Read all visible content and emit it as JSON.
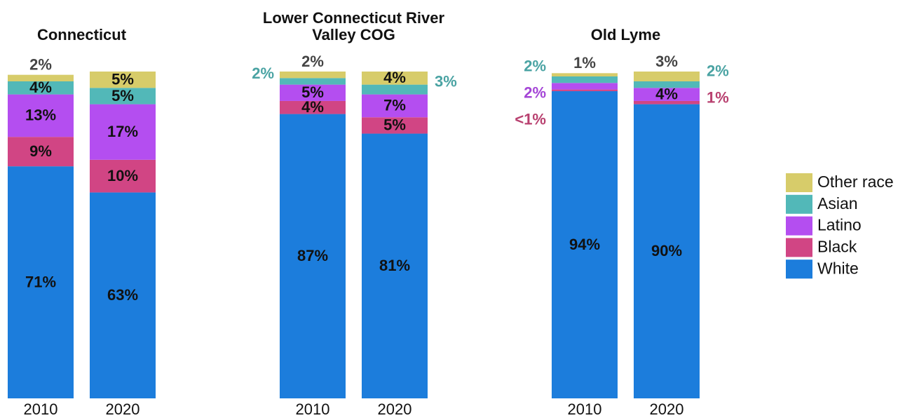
{
  "chart_data": [
    {
      "type": "stacked-bar",
      "title": "Connecticut",
      "categories": [
        "2010",
        "2020"
      ],
      "ylim": [
        0,
        100
      ],
      "legend": "right",
      "series": [
        {
          "name": "White",
          "color": "#1c7ddc",
          "values": [
            71,
            63
          ],
          "value_labels": [
            "71%",
            "63%"
          ]
        },
        {
          "name": "Black",
          "color": "#d14584",
          "values": [
            9,
            10
          ],
          "value_labels": [
            "9%",
            "10%"
          ]
        },
        {
          "name": "Latino",
          "color": "#b44ef0",
          "values": [
            13,
            17
          ],
          "value_labels": [
            "13%",
            "17%"
          ]
        },
        {
          "name": "Asian",
          "color": "#52b8b8",
          "values": [
            4,
            5
          ],
          "value_labels": [
            "4%",
            "5%"
          ]
        },
        {
          "name": "Other race",
          "color": "#d7cc6a",
          "values": [
            2,
            5
          ],
          "value_labels": [
            "2%",
            "5%"
          ]
        }
      ]
    },
    {
      "type": "stacked-bar",
      "title": "Lower Connecticut River Valley COG",
      "categories": [
        "2010",
        "2020"
      ],
      "ylim": [
        0,
        100
      ],
      "series": [
        {
          "name": "White",
          "color": "#1c7ddc",
          "values": [
            87,
            81
          ],
          "value_labels": [
            "87%",
            "81%"
          ]
        },
        {
          "name": "Black",
          "color": "#d14584",
          "values": [
            4,
            5
          ],
          "value_labels": [
            "4%",
            "5%"
          ]
        },
        {
          "name": "Latino",
          "color": "#b44ef0",
          "values": [
            5,
            7
          ],
          "value_labels": [
            "5%",
            "7%"
          ]
        },
        {
          "name": "Asian",
          "color": "#52b8b8",
          "values": [
            2,
            3
          ],
          "value_labels": [
            "2%",
            "3%"
          ]
        },
        {
          "name": "Other race",
          "color": "#d7cc6a",
          "values": [
            2,
            4
          ],
          "value_labels": [
            "2%",
            "4%"
          ]
        }
      ]
    },
    {
      "type": "stacked-bar",
      "title": "Old Lyme",
      "categories": [
        "2010",
        "2020"
      ],
      "ylim": [
        0,
        100
      ],
      "series": [
        {
          "name": "White",
          "color": "#1c7ddc",
          "values": [
            94,
            90
          ],
          "value_labels": [
            "94%",
            "90%"
          ]
        },
        {
          "name": "Black",
          "color": "#d14584",
          "values": [
            0.5,
            1
          ],
          "value_labels": [
            "<1%",
            "1%"
          ]
        },
        {
          "name": "Latino",
          "color": "#b44ef0",
          "values": [
            2,
            4
          ],
          "value_labels": [
            "2%",
            "4%"
          ]
        },
        {
          "name": "Asian",
          "color": "#52b8b8",
          "values": [
            2,
            2
          ],
          "value_labels": [
            "2%",
            "2%"
          ]
        },
        {
          "name": "Other race",
          "color": "#d7cc6a",
          "values": [
            1,
            3
          ],
          "value_labels": [
            "1%",
            "3%"
          ]
        }
      ]
    }
  ]
}
